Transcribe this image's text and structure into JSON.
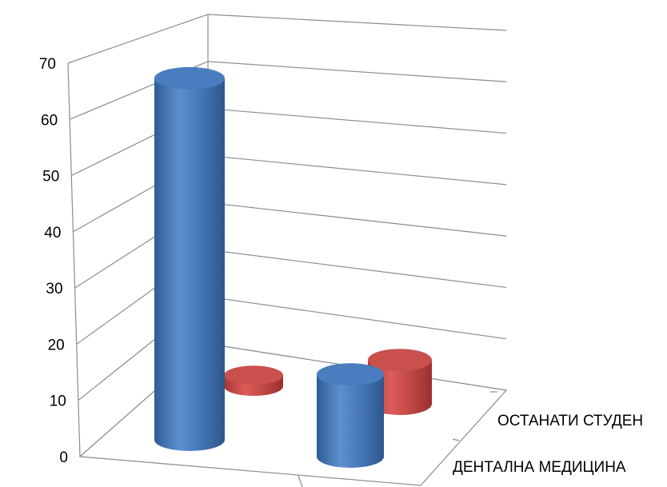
{
  "chart_data": {
    "type": "bar",
    "subtype": "3d-cylinder",
    "title": "",
    "xlabel": "",
    "ylabel": "",
    "ylim": [
      0,
      70
    ],
    "yticks": [
      0,
      10,
      20,
      30,
      40,
      50,
      60,
      70
    ],
    "grid": true,
    "legend": "none",
    "groups": [
      "",
      ""
    ],
    "series": [
      {
        "label": "ДЕНТАЛНА МЕДИЦИНА",
        "color": "#4F81BD",
        "values": [
          66,
          15
        ]
      },
      {
        "label": "ОСТАНАТИ СТУДЕН",
        "color": "#C0504D",
        "values": [
          2,
          8
        ]
      }
    ]
  }
}
